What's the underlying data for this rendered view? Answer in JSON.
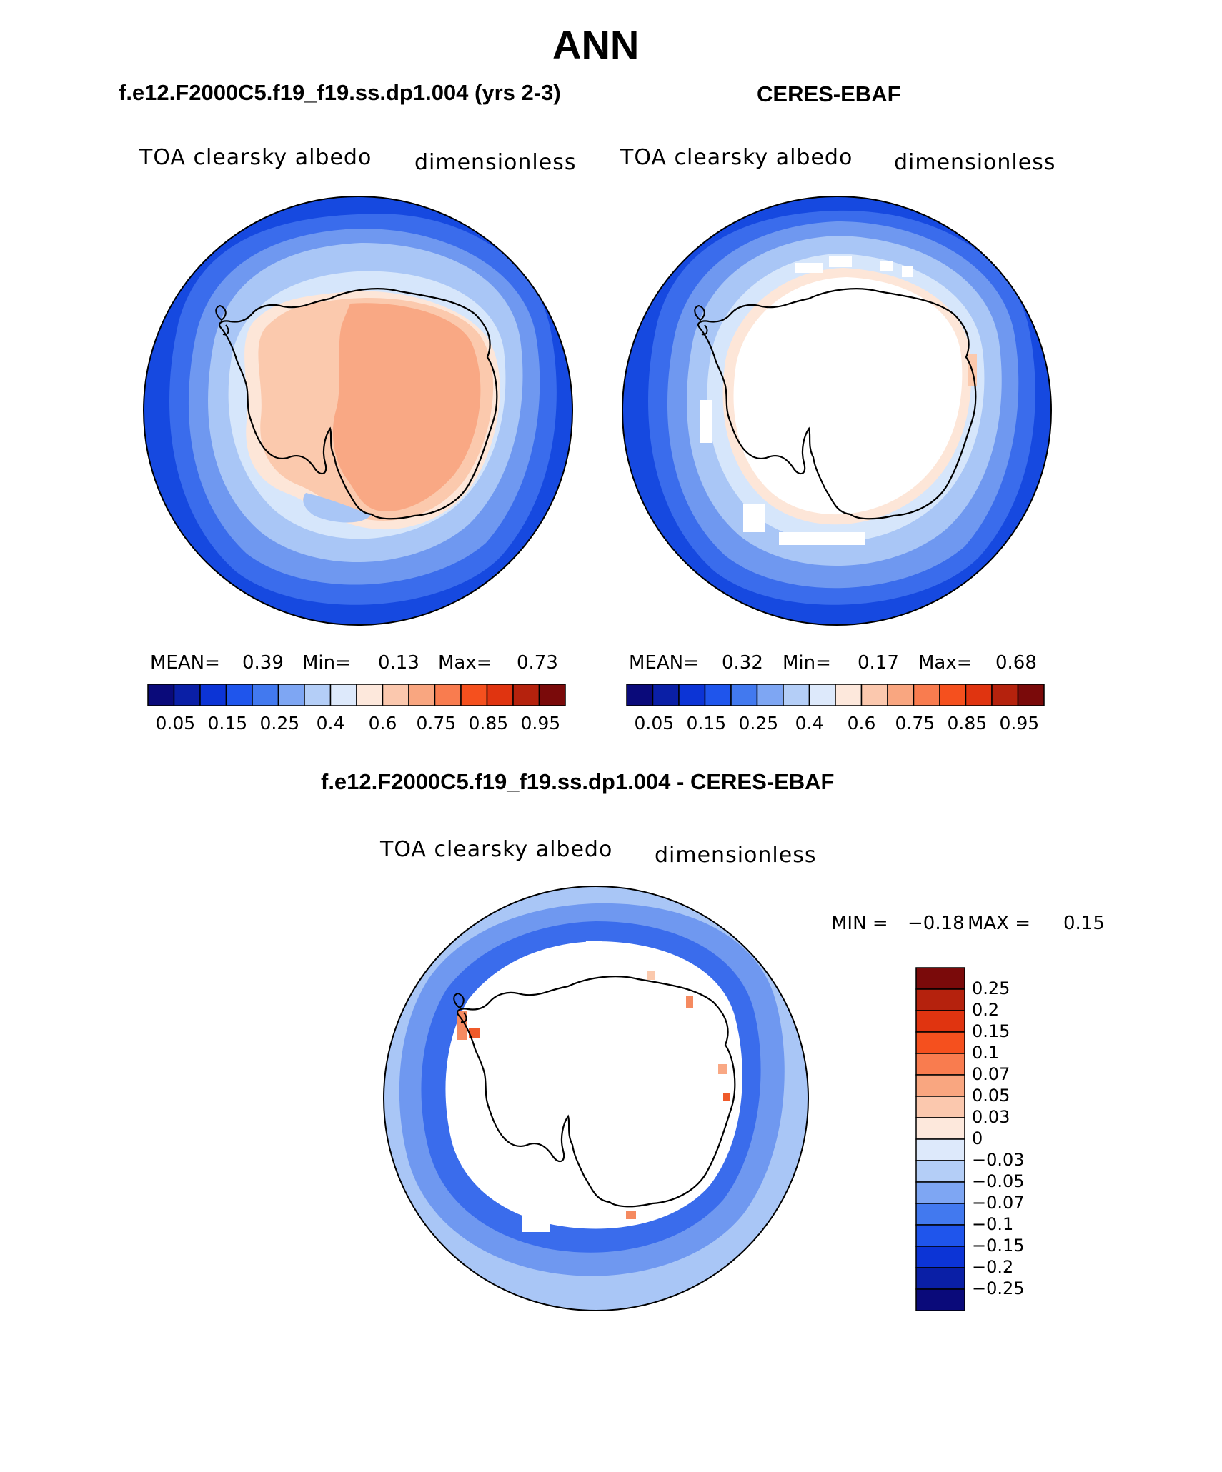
{
  "title": "ANN",
  "panels": [
    {
      "title": "f.e12.F2000C5.f19_f19.ss.dp1.004 (yrs 2-3)",
      "variable": "TOA clearsky albedo",
      "units": "dimensionless",
      "stats": {
        "mean_label": "MEAN=",
        "mean": "0.39",
        "min_label": "Min=",
        "min": "0.13",
        "max_label": "Max=",
        "max": "0.73"
      }
    },
    {
      "title": "CERES-EBAF",
      "variable": "TOA clearsky albedo",
      "units": "dimensionless",
      "stats": {
        "mean_label": "MEAN=",
        "mean": "0.32",
        "min_label": "Min=",
        "min": "0.17",
        "max_label": "Max=",
        "max": "0.68"
      }
    },
    {
      "title": "f.e12.F2000C5.f19_f19.ss.dp1.004 - CERES-EBAF",
      "variable": "TOA clearsky albedo",
      "units": "dimensionless",
      "stats": {
        "min_label": "MIN =",
        "min": "−0.18",
        "max_label": "MAX =",
        "max": "0.15"
      }
    }
  ],
  "colorbar_horizontal": {
    "tick_labels": [
      "0.05",
      "0.15",
      "0.25",
      "0.4",
      "0.6",
      "0.75",
      "0.85",
      "0.95"
    ],
    "colors": [
      "#0a0a7a",
      "#0a1fa6",
      "#0c34d6",
      "#1f55ec",
      "#4279ef",
      "#7ea6f3",
      "#b4cef7",
      "#dde9fb",
      "#fde8dc",
      "#fbc8ae",
      "#f9a680",
      "#f97c4f",
      "#f5501e",
      "#e03410",
      "#b5220d",
      "#7a0a0a"
    ]
  },
  "colorbar_vertical": {
    "tick_labels": [
      "0.25",
      "0.2",
      "0.15",
      "0.1",
      "0.07",
      "0.05",
      "0.03",
      "0",
      "−0.03",
      "−0.05",
      "−0.07",
      "−0.1",
      "−0.15",
      "−0.2",
      "−0.25"
    ],
    "colors": [
      "#7a0a0a",
      "#b5220d",
      "#e03410",
      "#f5501e",
      "#f97c4f",
      "#f9a680",
      "#fbc8ae",
      "#fde8dc",
      "#dde9fb",
      "#b4cef7",
      "#7ea6f3",
      "#4279ef",
      "#1f55ec",
      "#0c34d6",
      "#0a1fa6",
      "#0a0a7a"
    ]
  },
  "map_colors": {
    "deep_blue": "#1649e0",
    "blue": "#3a6cec",
    "mid_blue": "#6f98f0",
    "light_blue": "#a9c6f6",
    "pale_blue": "#d6e6fb",
    "cream": "#fde6d8",
    "peach": "#fbc9ad",
    "salmon": "#f9a884",
    "orange": "#f58a60",
    "red_orange": "#ef5a2a",
    "white": "#ffffff"
  }
}
